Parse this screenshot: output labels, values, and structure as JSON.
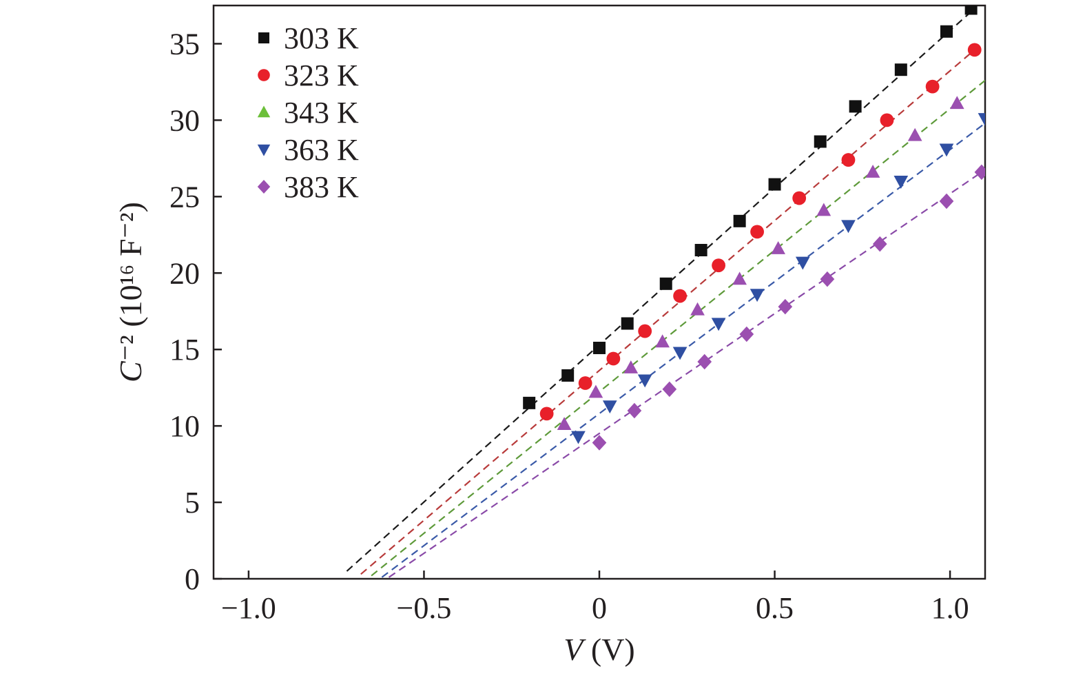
{
  "chart_data": {
    "type": "scatter",
    "title": "",
    "xlabel": "V (V)",
    "ylabel": "C⁻² (10¹⁶ F⁻²)",
    "xlim": [
      -1.1,
      1.1
    ],
    "ylim": [
      0,
      37.5
    ],
    "x_ticks": [
      -1.0,
      -0.5,
      0,
      0.5,
      1.0
    ],
    "x_tick_labels": [
      "−1.0",
      "−0.5",
      "0",
      "0.5",
      "1.0"
    ],
    "y_ticks": [
      0,
      5,
      10,
      15,
      20,
      25,
      30,
      35
    ],
    "y_tick_labels": [
      "0",
      "5",
      "10",
      "15",
      "20",
      "25",
      "30",
      "35"
    ],
    "grid": false,
    "legend_position": "top-left",
    "series": [
      {
        "name": "303 K",
        "color": "#111111",
        "line_color": "#1a1a1a",
        "marker": "square",
        "x": [
          -0.2,
          -0.09,
          0.0,
          0.08,
          0.19,
          0.29,
          0.4,
          0.5,
          0.63,
          0.73,
          0.86,
          0.99,
          1.06
        ],
        "y": [
          11.5,
          13.3,
          15.1,
          16.7,
          19.3,
          21.5,
          23.4,
          25.8,
          28.6,
          30.9,
          33.3,
          35.8,
          37.3
        ],
        "fit": {
          "x": [
            -0.72,
            1.07
          ],
          "y": [
            0.5,
            37.3
          ]
        }
      },
      {
        "name": "323 K",
        "color": "#e8202a",
        "line_color": "#b83a3a",
        "marker": "circle",
        "x": [
          -0.15,
          -0.04,
          0.04,
          0.13,
          0.23,
          0.34,
          0.45,
          0.57,
          0.71,
          0.82,
          0.95,
          1.07
        ],
        "y": [
          10.8,
          12.8,
          14.4,
          16.2,
          18.5,
          20.5,
          22.7,
          24.9,
          27.4,
          30.0,
          32.2,
          34.6
        ],
        "fit": {
          "x": [
            -0.68,
            1.07
          ],
          "y": [
            0.3,
            34.6
          ]
        }
      },
      {
        "name": "343 K",
        "color": "#9b4fb0",
        "line_color": "#5e9a3a",
        "legend_color": "#6cbf3a",
        "marker": "triangle-up",
        "x": [
          -0.1,
          -0.01,
          0.09,
          0.18,
          0.28,
          0.4,
          0.51,
          0.64,
          0.78,
          0.9,
          1.02
        ],
        "y": [
          10.1,
          12.2,
          13.8,
          15.5,
          17.6,
          19.6,
          21.6,
          24.1,
          26.6,
          29.0,
          31.1
        ],
        "fit": {
          "x": [
            -0.65,
            1.1
          ],
          "y": [
            0.2,
            32.6
          ]
        }
      },
      {
        "name": "363 K",
        "color": "#2f4fa2",
        "line_color": "#3a5aa8",
        "marker": "triangle-down",
        "x": [
          -0.06,
          0.03,
          0.13,
          0.23,
          0.34,
          0.45,
          0.58,
          0.71,
          0.86,
          0.99,
          1.1
        ],
        "y": [
          9.3,
          11.3,
          13.0,
          14.8,
          16.7,
          18.6,
          20.7,
          23.1,
          26.0,
          28.1,
          30.1
        ],
        "fit": {
          "x": [
            -0.62,
            1.1
          ],
          "y": [
            0.1,
            29.8
          ]
        }
      },
      {
        "name": "383 K",
        "color": "#9b4fb0",
        "line_color": "#8a4aa8",
        "marker": "diamond",
        "x": [
          0.0,
          0.1,
          0.2,
          0.3,
          0.42,
          0.53,
          0.65,
          0.8,
          0.99,
          1.09
        ],
        "y": [
          8.9,
          11.0,
          12.4,
          14.2,
          16.0,
          17.8,
          19.6,
          21.9,
          24.7,
          26.6
        ],
        "fit": {
          "x": [
            -0.6,
            1.09
          ],
          "y": [
            0.1,
            26.6
          ]
        }
      }
    ]
  }
}
